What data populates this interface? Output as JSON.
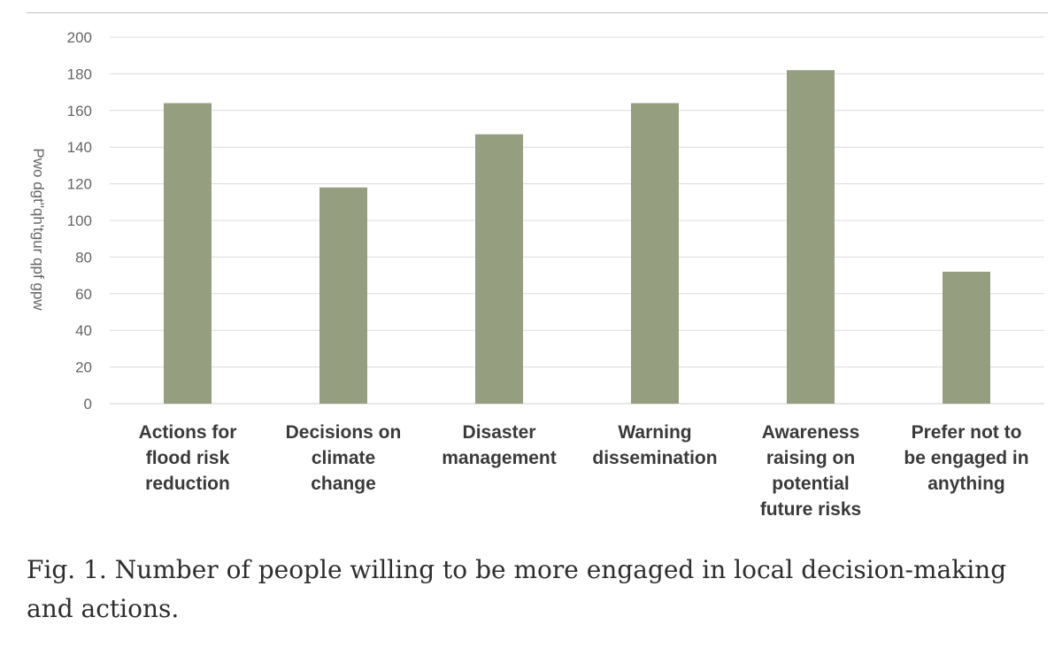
{
  "caption": "Fig. 1. Number of people willing to be more engaged in local decision-making and actions.",
  "chart_data": {
    "type": "bar",
    "ylabel": "Pwo dgt\"qh'tgur qpf gpw",
    "ylim": [
      0,
      200
    ],
    "yticks": [
      0,
      20,
      40,
      60,
      80,
      100,
      120,
      140,
      160,
      180,
      200
    ],
    "grid": true,
    "bar_color": "#959e7e",
    "categories": [
      [
        "Actions for",
        "flood risk",
        "reduction"
      ],
      [
        "Decisions on",
        "climate",
        "change"
      ],
      [
        "Disaster",
        "management"
      ],
      [
        "Warning",
        "dissemination"
      ],
      [
        "Awareness",
        "raising on",
        "potential",
        "future risks"
      ],
      [
        "Prefer not to",
        "be engaged in",
        "anything"
      ]
    ],
    "values": [
      164,
      118,
      147,
      164,
      182,
      72
    ]
  }
}
